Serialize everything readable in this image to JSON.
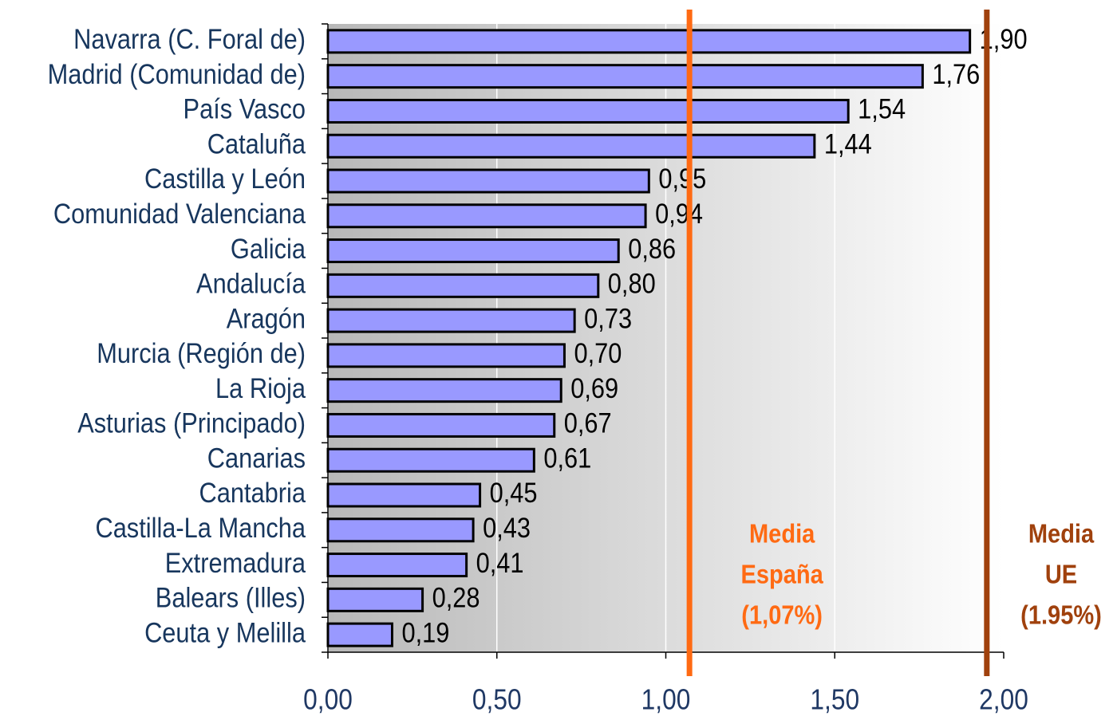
{
  "chart_data": {
    "type": "barh",
    "categories": [
      "Navarra (C. Foral de)",
      "Madrid (Comunidad de)",
      "País Vasco",
      "Cataluña",
      "Castilla y León",
      "Comunidad Valenciana",
      "Galicia",
      "Andalucía",
      "Aragón ",
      "Murcia (Región de)",
      "La Rioja",
      "Asturias (Principado)",
      "Canarias",
      "Cantabria",
      "Castilla-La Mancha",
      "Extremadura",
      "Balears (Illes)",
      "Ceuta y Melilla"
    ],
    "values": [
      1.9,
      1.76,
      1.54,
      1.44,
      0.95,
      0.94,
      0.86,
      0.8,
      0.73,
      0.7,
      0.69,
      0.67,
      0.61,
      0.45,
      0.43,
      0.41,
      0.28,
      0.19
    ],
    "value_labels": [
      "1,90",
      "1,76",
      "1,54",
      "1,44",
      "0,95",
      "0,94",
      "0,86",
      "0,80",
      "0,73",
      "0,70",
      "0,69",
      "0,67",
      "0,61",
      "0,45",
      "0,43",
      "0,41",
      "0,28",
      "0,19"
    ],
    "color": "#9999ff",
    "xlim": [
      0,
      2
    ],
    "xticks": [
      {
        "value": 0,
        "label": "0,00"
      },
      {
        "value": 0.5,
        "label": "0,50"
      },
      {
        "value": 1,
        "label": "1,00"
      },
      {
        "value": 1.5,
        "label": "1,50"
      },
      {
        "value": 2,
        "label": "2,00"
      }
    ],
    "grid": true,
    "reference_lines": [
      {
        "value": 1.07,
        "label": [
          "Media",
          "España",
          "(1,07%)"
        ],
        "color": "#ff6a13"
      },
      {
        "value": 1.95,
        "label": [
          "Media",
          "UE",
          "(1.95%)"
        ],
        "color": "#a0410d"
      }
    ]
  }
}
